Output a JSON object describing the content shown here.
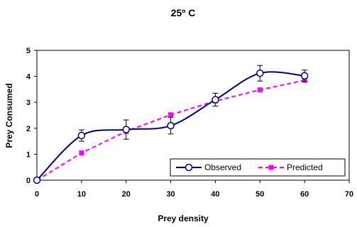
{
  "chart_data": {
    "type": "line",
    "title": "25º C",
    "xlabel": "Prey density",
    "ylabel": "Prey Consumed",
    "xlim": [
      0,
      70
    ],
    "ylim": [
      0,
      5
    ],
    "x_ticks": [
      "0",
      "10",
      "20",
      "30",
      "40",
      "50",
      "60",
      "70"
    ],
    "y_ticks": [
      "0",
      "1",
      "2",
      "3",
      "4",
      "5"
    ],
    "grid": false,
    "legend_position": "bottom-right",
    "series": [
      {
        "name": "Observed",
        "color": "#000080",
        "marker": "open-circle",
        "smooth": true,
        "x": [
          0,
          10,
          20,
          30,
          40,
          50,
          60
        ],
        "y": [
          0,
          1.72,
          1.95,
          2.1,
          3.1,
          4.12,
          4.02
        ],
        "error": [
          0,
          0.22,
          0.37,
          0.32,
          0.25,
          0.3,
          0.22
        ]
      },
      {
        "name": "Predicted",
        "color": "#ff00ff",
        "marker": "square",
        "dashed": true,
        "x": [
          0,
          10,
          20,
          30,
          40,
          50,
          60
        ],
        "y": [
          0,
          1.05,
          1.88,
          2.52,
          3.05,
          3.48,
          3.85
        ]
      }
    ]
  }
}
